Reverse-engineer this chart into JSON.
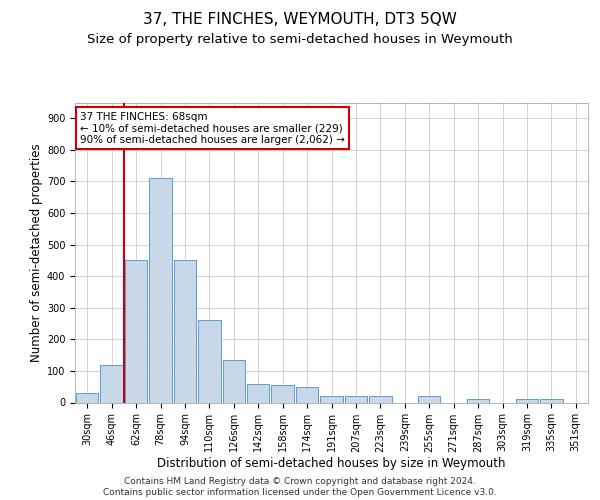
{
  "title": "37, THE FINCHES, WEYMOUTH, DT3 5QW",
  "subtitle": "Size of property relative to semi-detached houses in Weymouth",
  "xlabel": "Distribution of semi-detached houses by size in Weymouth",
  "ylabel": "Number of semi-detached properties",
  "categories": [
    "30sqm",
    "46sqm",
    "62sqm",
    "78sqm",
    "94sqm",
    "110sqm",
    "126sqm",
    "142sqm",
    "158sqm",
    "174sqm",
    "191sqm",
    "207sqm",
    "223sqm",
    "239sqm",
    "255sqm",
    "271sqm",
    "287sqm",
    "303sqm",
    "319sqm",
    "335sqm",
    "351sqm"
  ],
  "bar_values": [
    30,
    120,
    450,
    710,
    450,
    260,
    135,
    60,
    55,
    50,
    20,
    20,
    20,
    0,
    20,
    0,
    10,
    0,
    10,
    10,
    0
  ],
  "bar_color": "#c8d8e8",
  "bar_edge_color": "#5b9bd5",
  "vline_color": "#cc0000",
  "vline_x_index": 2,
  "annotation_text": "37 THE FINCHES: 68sqm\n← 10% of semi-detached houses are smaller (229)\n90% of semi-detached houses are larger (2,062) →",
  "annotation_box_color": "#ffffff",
  "annotation_box_edge": "#cc0000",
  "ylim": [
    0,
    950
  ],
  "yticks": [
    0,
    100,
    200,
    300,
    400,
    500,
    600,
    700,
    800,
    900
  ],
  "footer": "Contains HM Land Registry data © Crown copyright and database right 2024.\nContains public sector information licensed under the Open Government Licence v3.0.",
  "bg_color": "#ffffff",
  "grid_color": "#cccccc",
  "title_fontsize": 11,
  "subtitle_fontsize": 9.5,
  "axis_label_fontsize": 8.5,
  "tick_fontsize": 7,
  "annotation_fontsize": 7.5,
  "footer_fontsize": 6.5
}
